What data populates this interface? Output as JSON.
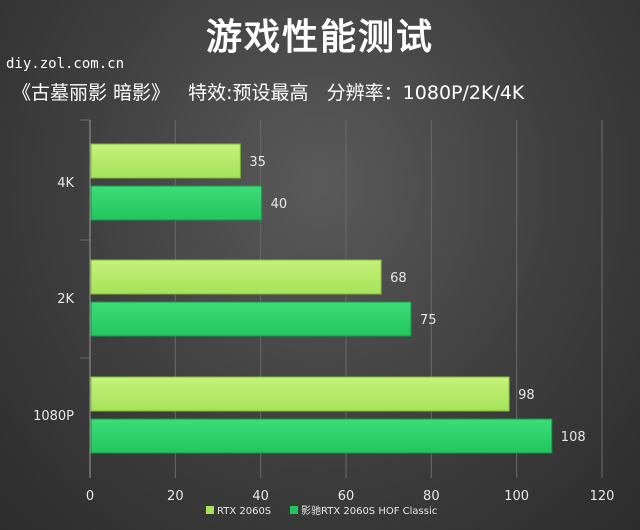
{
  "title": "游戏性能测试",
  "watermark": "diy.zol.com.cn",
  "subtitle": "《古墓丽影 暗影》   特效:预设最高   分辨率：1080P/2K/4K",
  "colors": {
    "series1": "#a6e25a",
    "series1_top": "#c6f27a",
    "series2": "#22c55e",
    "series2_top": "#3ddc78",
    "grid": "#6a6a6a",
    "text": "#e8e8e8"
  },
  "chart_data": {
    "type": "bar",
    "orientation": "horizontal",
    "categories": [
      "4K",
      "2K",
      "1080P"
    ],
    "series": [
      {
        "name": "RTX 2060S",
        "values": [
          35,
          68,
          98
        ]
      },
      {
        "name": "影驰RTX 2060S HOF Classic",
        "values": [
          40,
          75,
          108
        ]
      }
    ],
    "xlim": [
      0,
      120
    ],
    "x_ticks": [
      "0",
      "20",
      "40",
      "60",
      "80",
      "100",
      "120"
    ],
    "grid": true,
    "legend": "bottom"
  }
}
